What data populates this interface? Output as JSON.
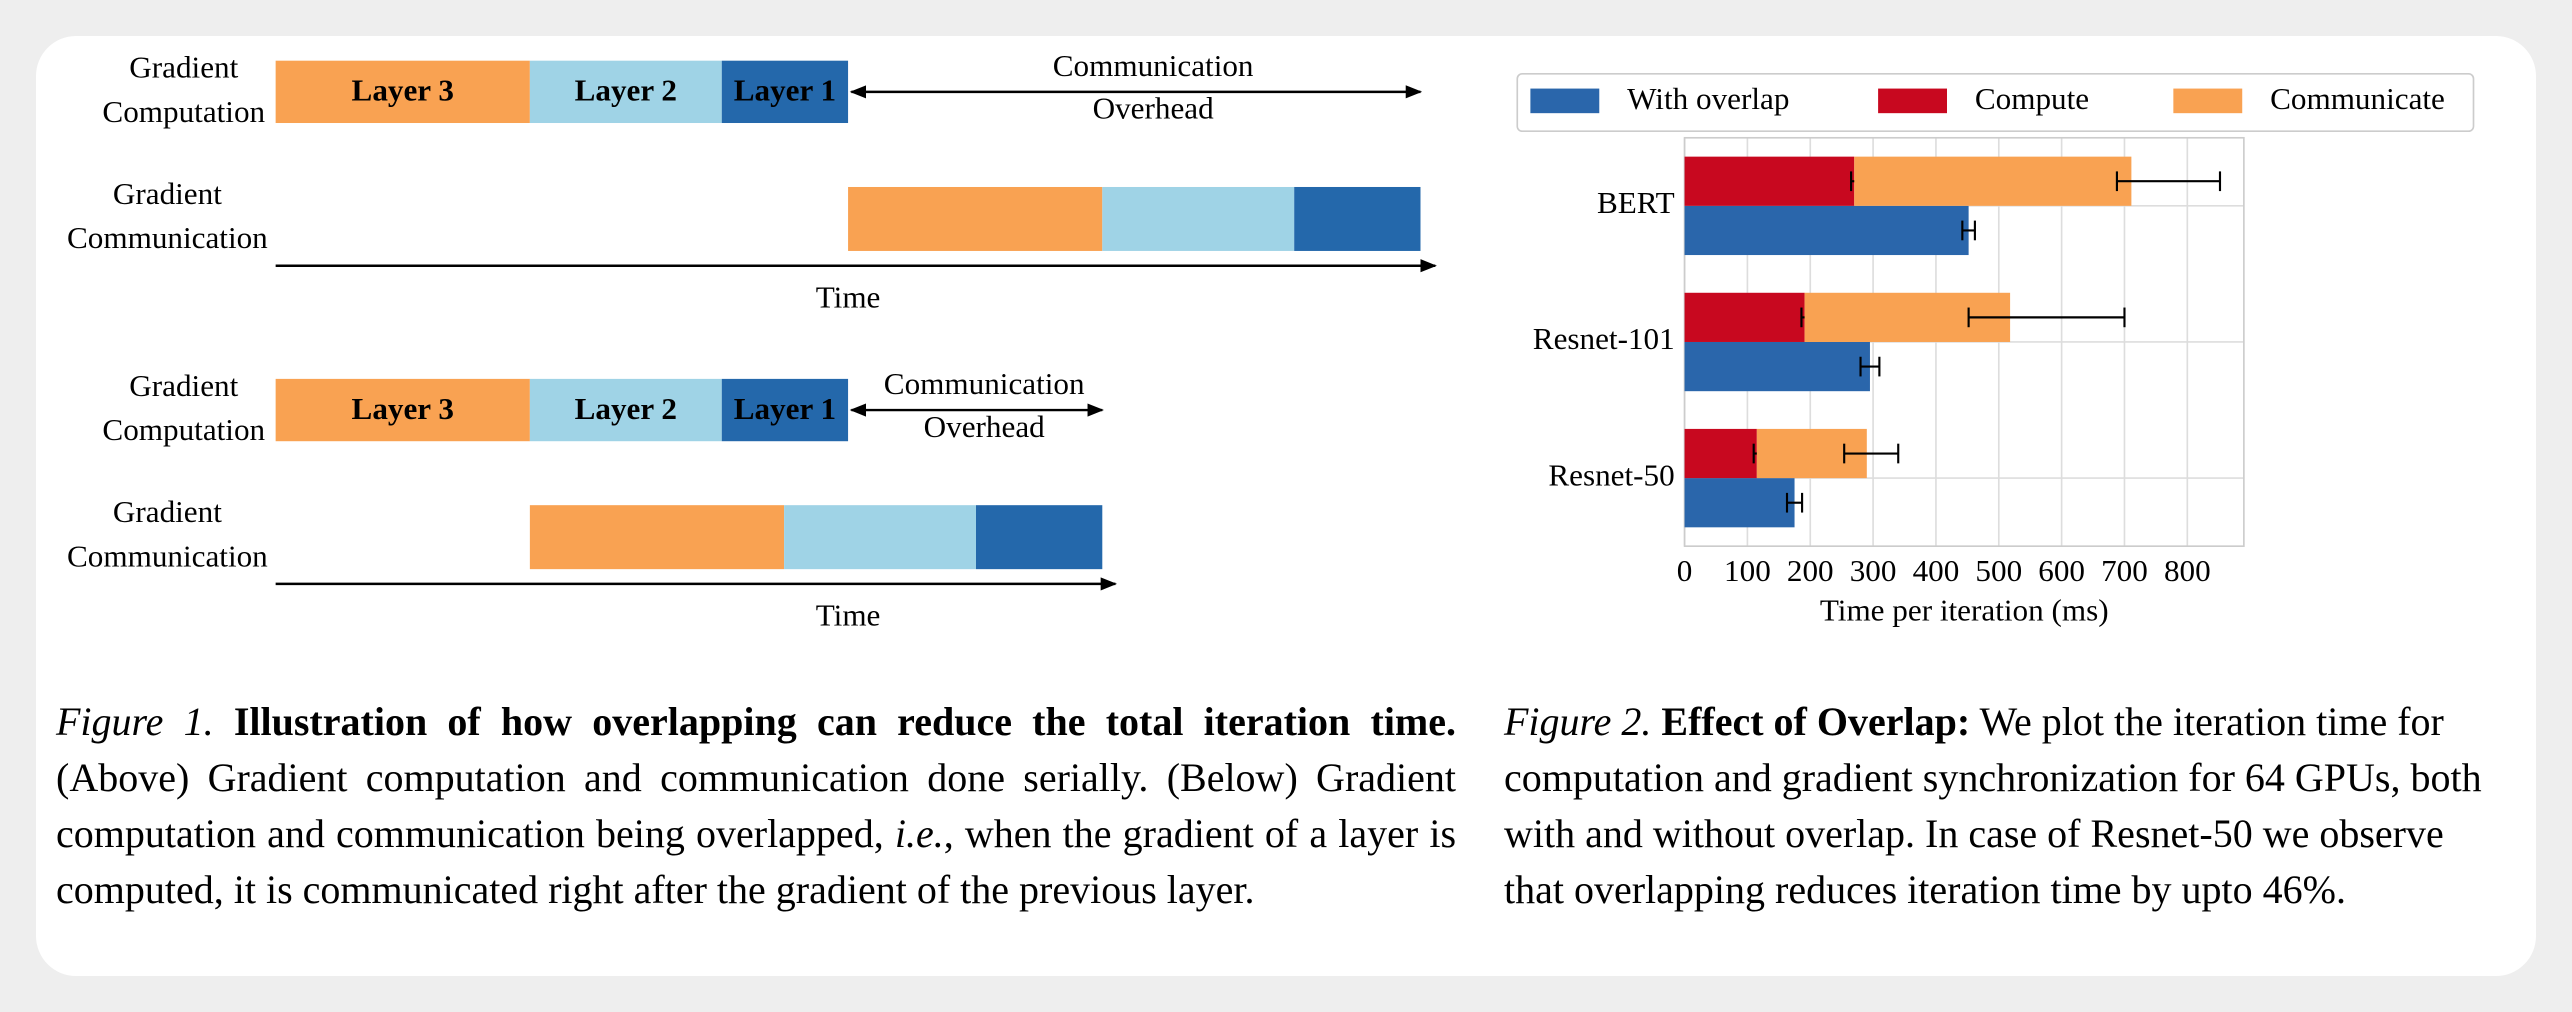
{
  "figure1": {
    "panels": [
      {
        "computation_label": [
          "Gradient",
          "Computation"
        ],
        "communication_label": [
          "Gradient",
          "Communication"
        ],
        "layers": [
          "Layer 3",
          "Layer 2",
          "Layer 1"
        ],
        "overhead_label": [
          "Communication",
          "Overhead"
        ],
        "time_label": "Time"
      },
      {
        "computation_label": [
          "Gradient",
          "Computation"
        ],
        "communication_label": [
          "Gradient",
          "Communication"
        ],
        "layers": [
          "Layer 3",
          "Layer 2",
          "Layer 1"
        ],
        "overhead_label": [
          "Communication",
          "Overhead"
        ],
        "time_label": "Time"
      }
    ],
    "caption": {
      "label": "Figure 1.",
      "heading": "Illustration of how overlapping can reduce the total iteration time.",
      "body_1": "(Above) Gradient computation and communication done serially. (Below) Gradient computation and communication being overlapped,",
      "body_em": "i.e.",
      "body_2": ", when the gradient of a layer is computed, it is communicated right after the gradient of the previous layer."
    }
  },
  "chart_data": {
    "type": "bar",
    "orientation": "horizontal",
    "categories": [
      "BERT",
      "Resnet-101",
      "Resnet-50"
    ],
    "series": [
      {
        "name": "With overlap",
        "color": "#2a66ab",
        "values": [
          452,
          295,
          175
        ],
        "errors": [
          [
            10,
            10
          ],
          [
            15,
            15
          ],
          [
            12,
            12
          ]
        ]
      },
      {
        "name": "Compute",
        "color": "#c8081f",
        "values": [
          270,
          191,
          115
        ],
        "errors": [
          [
            5,
            5
          ],
          [
            5,
            5
          ],
          [
            5,
            5
          ]
        ]
      },
      {
        "name": "Communicate",
        "color": "#f9a252",
        "values": [
          441,
          327,
          175
        ],
        "errors": [
          [
            23,
            141
          ],
          [
            66,
            182
          ],
          [
            36,
            50
          ]
        ]
      }
    ],
    "xlabel": "Time per iteration (ms)",
    "xlim": [
      0,
      890
    ],
    "xticks": [
      0,
      100,
      200,
      300,
      400,
      500,
      600,
      700,
      800
    ],
    "grid": true,
    "legend": "top"
  },
  "figure2_caption": {
    "label": "Figure 2.",
    "heading": "Effect of Overlap:",
    "body": "We plot the iteration time for computation and gradient synchronization for 64 GPUs, both with and without overlap. In case of Resnet-50 we observe that overlapping reduces iteration time by upto 46%."
  }
}
